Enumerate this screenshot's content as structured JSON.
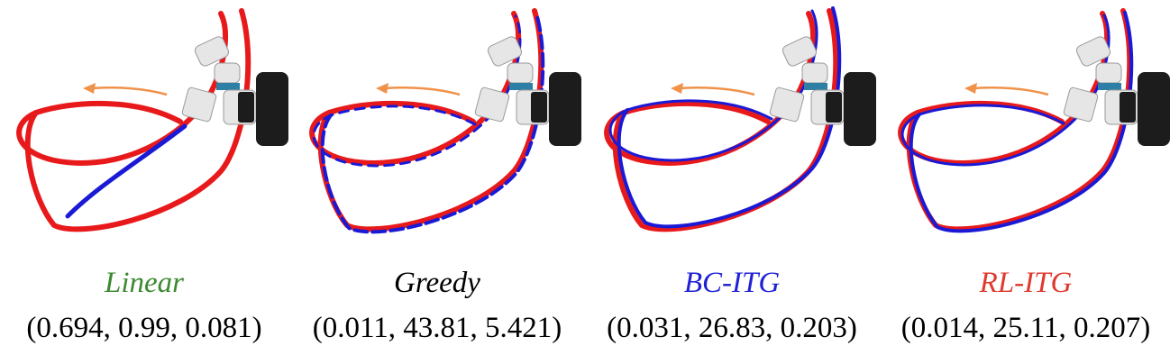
{
  "colors": {
    "reference_path": "#e8191b",
    "executed_path": "#1a1ad6",
    "motion_arrow": "#f0924a",
    "robot_body": "#e6e6e6",
    "robot_joint": "#2d7fa6",
    "camera": "#1c1c1c"
  },
  "panels": [
    {
      "method": "Linear",
      "method_color": "#3b8a2f",
      "metrics": "(0.694, 0.99, 0.081)"
    },
    {
      "method": "Greedy",
      "method_color": "#000000",
      "metrics": "(0.011, 43.81, 5.421)"
    },
    {
      "method": "BC-ITG",
      "method_color": "#1f22d4",
      "metrics": "(0.031, 26.83, 0.203)"
    },
    {
      "method": "RL-ITG",
      "method_color": "#e03a2f",
      "metrics": "(0.014, 25.11, 0.207)"
    }
  ]
}
